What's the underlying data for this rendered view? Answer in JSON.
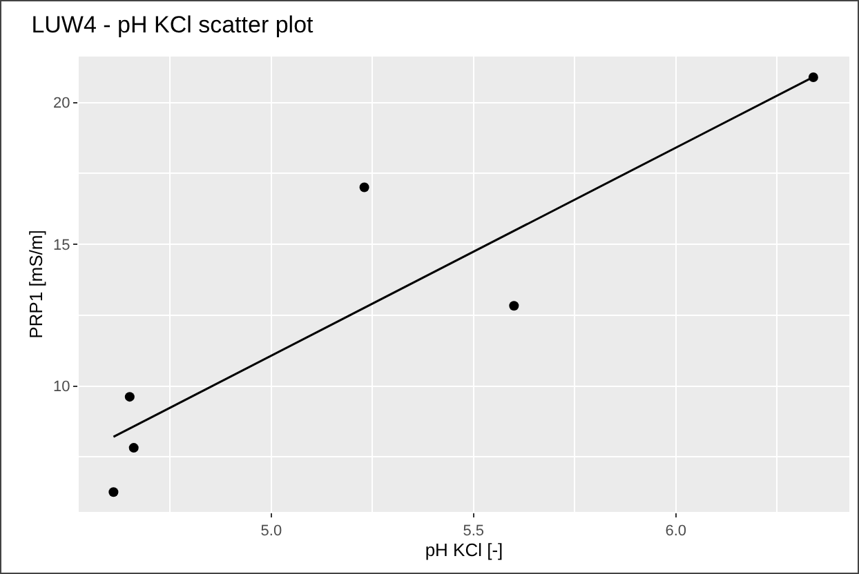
{
  "chart_data": {
    "type": "scatter",
    "title": "LUW4 - pH KCl scatter plot",
    "xlabel": "pH KCl [-]",
    "ylabel": "PRP1 [mS/m]",
    "xlim": [
      4.524,
      6.429
    ],
    "xticks": [
      {
        "value": 5,
        "label": "5.0"
      },
      {
        "value": 5.5,
        "label": "5.5"
      },
      {
        "value": 6,
        "label": "6.0"
      }
    ],
    "ylim": [
      5.56,
      21.62
    ],
    "yticks": [
      10,
      15,
      20
    ],
    "grid": true,
    "series": [
      {
        "marker": "circle",
        "color": "#000000",
        "x": [
          4.61,
          4.65,
          4.66,
          5.23,
          5.6,
          6.34
        ],
        "values": [
          6.26,
          9.62,
          7.82,
          17.01,
          12.83,
          20.89
        ]
      },
      {
        "type": "line",
        "marker": "none",
        "color": "#000000",
        "line_style": "solid",
        "x": [
          4.61,
          6.34
        ],
        "values": [
          8.21,
          20.9
        ]
      }
    ]
  }
}
